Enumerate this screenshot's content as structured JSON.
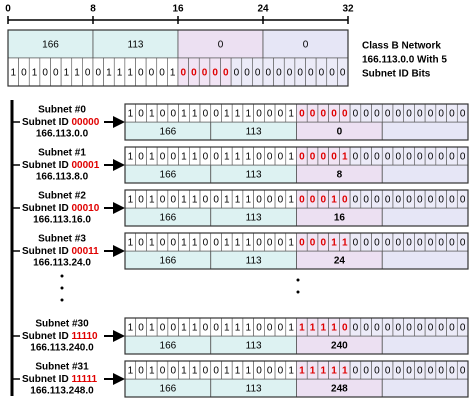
{
  "ruler": [
    "0",
    "8",
    "16",
    "24",
    "32"
  ],
  "network": {
    "octets": [
      "166",
      "113",
      "0",
      "0"
    ],
    "bits": "10100110011100010000000000000000",
    "caption": [
      "Class B Network",
      "166.113.0.0 With 5",
      "Subnet ID Bits"
    ]
  },
  "subnets": [
    {
      "label": "Subnet #0",
      "id_label": "Subnet ID",
      "id": "00000",
      "address": "166.113.0.0",
      "bits": "10100110011100010000000000000000",
      "octets": [
        "166",
        "113",
        "0"
      ]
    },
    {
      "label": "Subnet #1",
      "id_label": "Subnet ID",
      "id": "00001",
      "address": "166.113.8.0",
      "bits": "10100110011100010000100000000000",
      "octets": [
        "166",
        "113",
        "8"
      ]
    },
    {
      "label": "Subnet #2",
      "id_label": "Subnet ID",
      "id": "00010",
      "address": "166.113.16.0",
      "bits": "10100110011100010001000000000000",
      "octets": [
        "166",
        "113",
        "16"
      ]
    },
    {
      "label": "Subnet #3",
      "id_label": "Subnet ID",
      "id": "00011",
      "address": "166.113.24.0",
      "bits": "10100110011100010001100000000000",
      "octets": [
        "166",
        "113",
        "24"
      ]
    },
    {
      "label": "Subnet #30",
      "id_label": "Subnet ID",
      "id": "11110",
      "address": "166.113.240.0",
      "bits": "10100110011100011111000000000000",
      "octets": [
        "166",
        "113",
        "240"
      ]
    },
    {
      "label": "Subnet #31",
      "id_label": "Subnet ID",
      "id": "11111",
      "address": "166.113.248.0",
      "bits": "10100110011100011111100000000000",
      "octets": [
        "166",
        "113",
        "248"
      ]
    }
  ]
}
